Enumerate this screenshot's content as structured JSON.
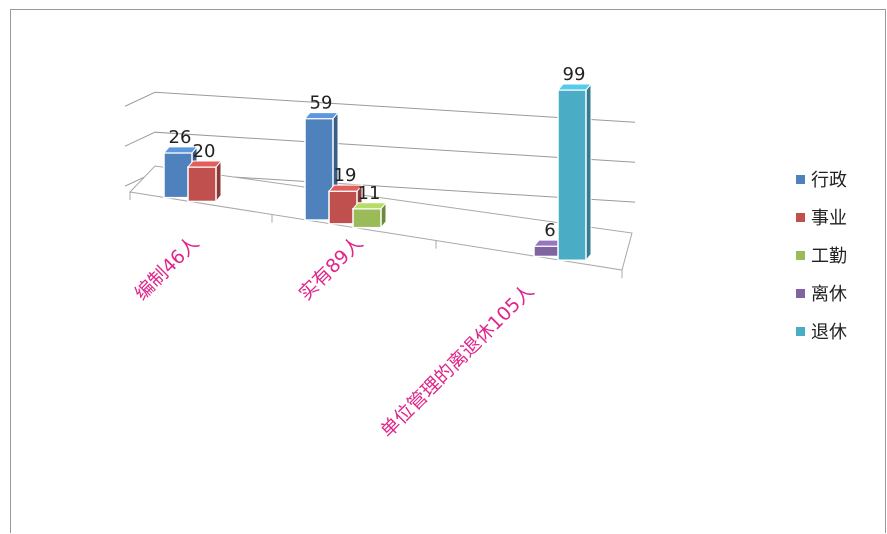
{
  "chart_data": {
    "type": "bar",
    "categories": [
      "编制46人",
      "实有89人",
      "单位管理的离退休105人"
    ],
    "series": [
      {
        "name": "行政",
        "color": "#4f81bd",
        "values": [
          26,
          59,
          null
        ]
      },
      {
        "name": "事业",
        "color": "#c0504d",
        "values": [
          20,
          19,
          null
        ]
      },
      {
        "name": "工勤",
        "color": "#9bbb59",
        "values": [
          null,
          11,
          null
        ]
      },
      {
        "name": "离休",
        "color": "#8064a2",
        "values": [
          null,
          null,
          6
        ]
      },
      {
        "name": "退休",
        "color": "#4bacc6",
        "values": [
          null,
          null,
          99
        ]
      }
    ],
    "category_label_color": "#e0268b",
    "legend_position": "right",
    "grid": true,
    "ylim": [
      0,
      120
    ],
    "style": "3d-clustered-column"
  }
}
